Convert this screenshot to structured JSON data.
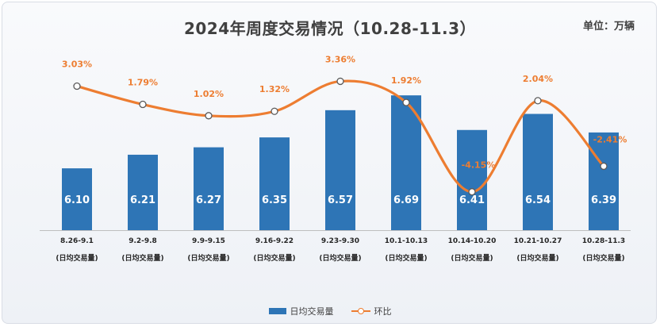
{
  "title": "2024年周度交易情况（10.28-11.3）",
  "unit_label": "单位：万辆",
  "colors": {
    "bar": "#2e75b6",
    "line": "#ed7d31"
  },
  "chart_data": {
    "type": "bar",
    "title": "2024年周度交易情况（10.28-11.3）",
    "categories": [
      "8.26-9.1",
      "9.2-9.8",
      "9.9-9.15",
      "9.16-9.22",
      "9.23-9.30",
      "10.1-10.13",
      "10.14-10.20",
      "10.21-10.27",
      "10.28-11.3"
    ],
    "category_sublabel": "(日均交易量)",
    "series": [
      {
        "name": "日均交易量",
        "kind": "bar",
        "values": [
          6.1,
          6.21,
          6.27,
          6.35,
          6.57,
          6.69,
          6.41,
          6.54,
          6.39
        ],
        "labels": [
          "6.10",
          "6.21",
          "6.27",
          "6.35",
          "6.57",
          "6.69",
          "6.41",
          "6.54",
          "6.39"
        ]
      },
      {
        "name": "环比",
        "kind": "line",
        "values": [
          3.03,
          1.79,
          1.02,
          1.32,
          3.36,
          1.92,
          -4.15,
          2.04,
          -2.41
        ],
        "labels": [
          "3.03%",
          "1.79%",
          "1.02%",
          "1.32%",
          "3.36%",
          "1.92%",
          "-4.15%",
          "2.04%",
          "-2.41%"
        ]
      }
    ],
    "bar_axis_range": [
      5.6,
      6.8
    ],
    "line_axis_range": [
      -6,
      5
    ],
    "grid": false,
    "legend_position": "bottom"
  }
}
